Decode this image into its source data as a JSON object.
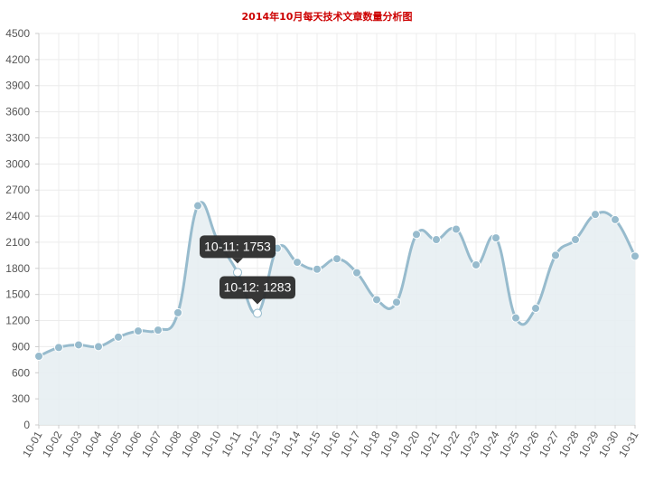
{
  "chart_data": {
    "type": "area",
    "title": "2014年10月每天技术文章数量分析图",
    "xlabel": "",
    "ylabel": "",
    "ylim": [
      0,
      4500
    ],
    "yticks": [
      0,
      300,
      600,
      900,
      1200,
      1500,
      1800,
      2100,
      2400,
      2700,
      3000,
      3300,
      3600,
      3900,
      4200,
      4500
    ],
    "grid": true,
    "categories": [
      "10-01",
      "10-02",
      "10-03",
      "10-04",
      "10-05",
      "10-06",
      "10-07",
      "10-08",
      "10-09",
      "10-10",
      "10-11",
      "10-12",
      "10-13",
      "10-14",
      "10-15",
      "10-16",
      "10-17",
      "10-18",
      "10-19",
      "10-20",
      "10-21",
      "10-22",
      "10-23",
      "10-24",
      "10-25",
      "10-26",
      "10-27",
      "10-28",
      "10-29",
      "10-30",
      "10-31"
    ],
    "series": [
      {
        "values": [
          790,
          890,
          920,
          900,
          1010,
          1080,
          1090,
          1290,
          2520,
          2120,
          1753,
          1283,
          2030,
          1870,
          1790,
          1910,
          1750,
          1440,
          1410,
          2190,
          2130,
          2250,
          1840,
          2150,
          1230,
          1340,
          1950,
          2130,
          2420,
          2360,
          1940
        ]
      }
    ],
    "tooltips": [
      {
        "index": 10,
        "text": "10-11: 1753"
      },
      {
        "index": 11,
        "text": "10-12: 1283"
      }
    ],
    "colors": {
      "title": "#cc0000",
      "line": "#97bbcd",
      "fill": "#e7eef2",
      "point_fill": "#97bbcd",
      "point_stroke": "#ffffff",
      "grid": "#ececec",
      "axis": "#cccccc",
      "tooltip_bg": "#2b2b2b"
    }
  }
}
